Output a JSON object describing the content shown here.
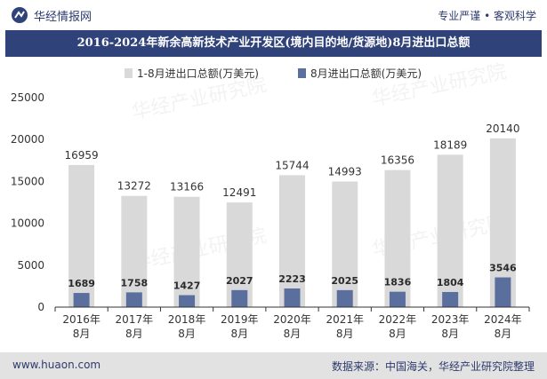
{
  "header": {
    "brand": "华经情报网",
    "slogan": "专业严谨 • 客观科学"
  },
  "footer": {
    "website": "www.huaon.com",
    "source": "数据来源：中国海关，华经产业研究院整理"
  },
  "watermark": "华经产业研究院",
  "colors": {
    "series1": "#d9d9d9",
    "series2": "#5b6f9e",
    "titlebar": "#2f4279"
  },
  "chart_data": {
    "type": "bar",
    "title": "2016-2024年新余高新技术产业开发区(境内目的地/货源地)8月进出口总额",
    "legend_position": "top",
    "categories": [
      "2016年\n8月",
      "2017年\n8月",
      "2018年\n8月",
      "2019年\n8月",
      "2020年\n8月",
      "2021年\n8月",
      "2022年\n8月",
      "2023年\n8月",
      "2024年\n8月"
    ],
    "series": [
      {
        "name": "1-8月进出口总额(万美元)",
        "values": [
          16959,
          13272,
          13166,
          12491,
          15744,
          14993,
          16356,
          18189,
          20140
        ]
      },
      {
        "name": "8月进出口总额(万美元)",
        "values": [
          1689,
          1758,
          1427,
          2027,
          2223,
          2025,
          1836,
          1804,
          3546
        ]
      }
    ],
    "ylim": [
      0,
      25000
    ],
    "yticks": [
      0,
      5000,
      10000,
      15000,
      20000,
      25000
    ],
    "grid": false
  }
}
